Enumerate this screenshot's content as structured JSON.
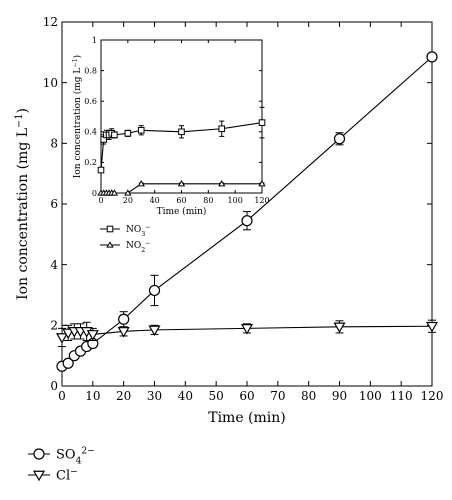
{
  "chart_data": [
    {
      "type": "line",
      "xlabel": "Time (min)",
      "ylabel": "Ion concentration (mg L",
      "ylabel_sup": "−1",
      "ylabel_close": ")",
      "xlim": [
        0,
        120
      ],
      "ylim": [
        0,
        12
      ],
      "x_ticks": [
        0,
        10,
        20,
        30,
        40,
        50,
        60,
        70,
        80,
        90,
        100,
        110,
        120
      ],
      "y_ticks": [
        0,
        2,
        4,
        6,
        8,
        10,
        12
      ],
      "grid": false,
      "legend_position": "bottom-left, below chart",
      "series": [
        {
          "name": "SO",
          "name_sub": "4",
          "name_sup": "2−",
          "marker": "circle",
          "x": [
            0,
            2,
            4,
            6,
            8,
            10,
            20,
            30,
            60,
            90,
            120
          ],
          "y": [
            0.65,
            0.75,
            1.0,
            1.15,
            1.3,
            1.4,
            2.2,
            3.15,
            5.45,
            8.15,
            10.85
          ],
          "err": [
            0.05,
            0.05,
            0.1,
            0.1,
            0.1,
            0.1,
            0.25,
            0.5,
            0.3,
            0.2,
            0.1
          ]
        },
        {
          "name": "Cl",
          "name_sup": "−",
          "marker": "triangle-down",
          "x": [
            0,
            2,
            4,
            6,
            8,
            10,
            20,
            30,
            60,
            90,
            120
          ],
          "y": [
            1.6,
            1.75,
            1.8,
            1.8,
            1.8,
            1.7,
            1.8,
            1.85,
            1.9,
            1.95,
            1.97
          ],
          "err": [
            0.3,
            0.25,
            0.25,
            0.25,
            0.3,
            0.2,
            0.15,
            0.15,
            0.15,
            0.2,
            0.2
          ]
        }
      ]
    },
    {
      "type": "line",
      "inset": true,
      "xlabel": "Time (min)",
      "ylabel": "Ion concentration (mg L",
      "ylabel_sup": "−1",
      "ylabel_close": ")",
      "xlim": [
        0,
        120
      ],
      "ylim": [
        0,
        1
      ],
      "x_ticks": [
        0,
        20,
        40,
        60,
        80,
        100,
        120
      ],
      "y_ticks": [
        0,
        0.2,
        0.4,
        0.6,
        0.8,
        1
      ],
      "grid": false,
      "legend_position": "below inset",
      "series": [
        {
          "name": "NO",
          "name_sub": "3",
          "name_sup": "−",
          "marker": "square",
          "x": [
            0,
            2,
            4,
            6,
            8,
            10,
            20,
            30,
            60,
            90,
            120
          ],
          "y": [
            0.15,
            0.35,
            0.38,
            0.38,
            0.39,
            0.38,
            0.39,
            0.41,
            0.4,
            0.42,
            0.46
          ],
          "err": [
            0.01,
            0.03,
            0.03,
            0.03,
            0.03,
            0.02,
            0.02,
            0.03,
            0.04,
            0.05,
            0.1
          ]
        },
        {
          "name": "NO",
          "name_sub": "2",
          "name_sup": "−",
          "marker": "triangle-up",
          "x": [
            0,
            2,
            4,
            6,
            8,
            10,
            20,
            30,
            60,
            90,
            120
          ],
          "y": [
            0.0,
            0.0,
            0.0,
            0.0,
            0.0,
            0.0,
            0.0,
            0.06,
            0.06,
            0.06,
            0.06
          ],
          "err": [
            0,
            0,
            0,
            0,
            0,
            0,
            0,
            0.005,
            0.005,
            0.005,
            0.005
          ]
        }
      ]
    }
  ]
}
